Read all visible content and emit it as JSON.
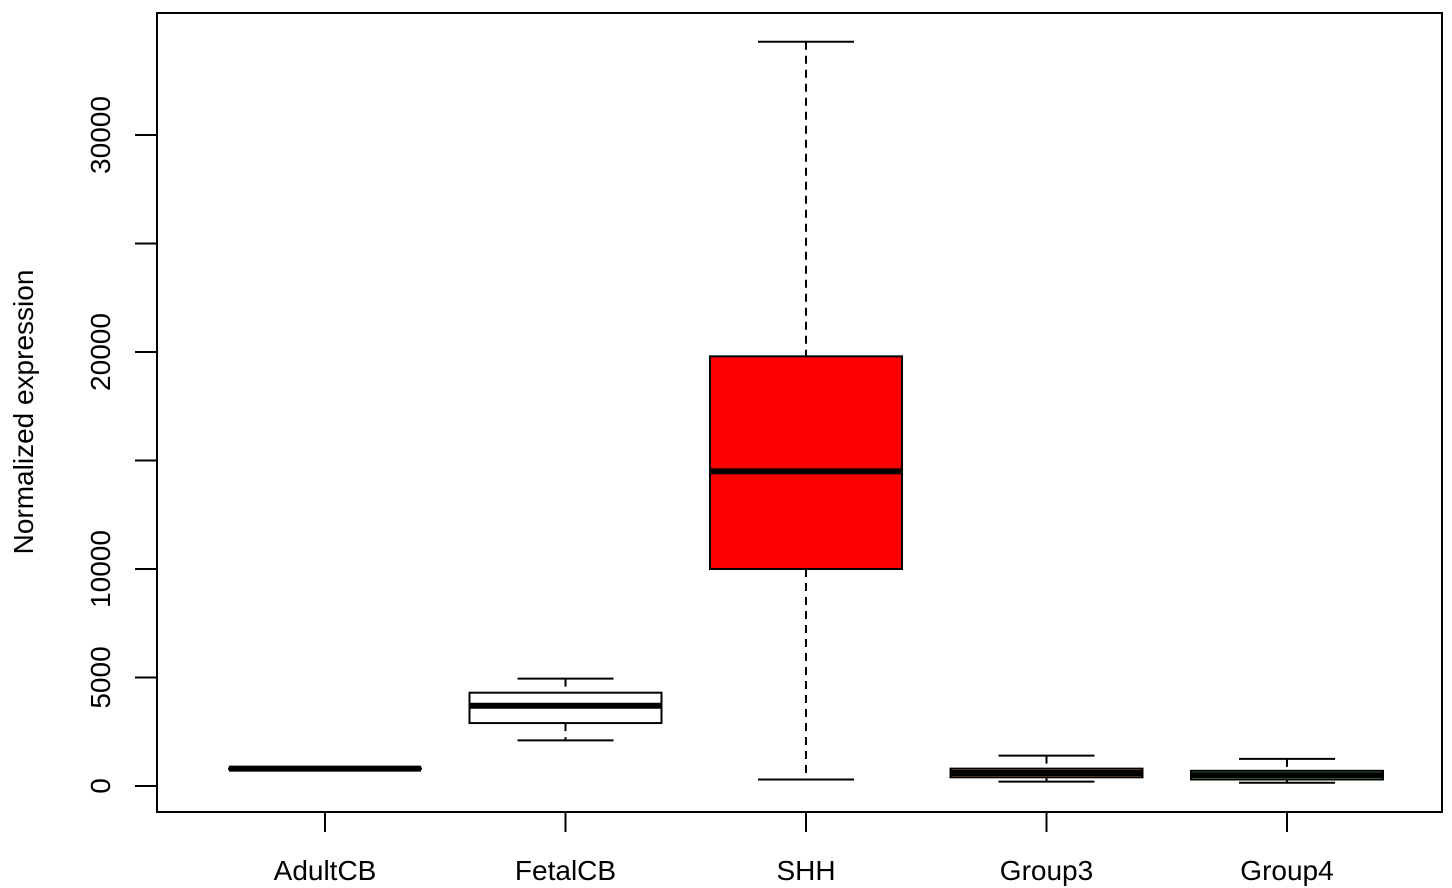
{
  "chart_data": {
    "type": "boxplot",
    "title": "",
    "xlabel": "",
    "ylabel": "Normalized expression",
    "ylim": [
      -1200,
      35500
    ],
    "yticks": [
      0,
      5000,
      10000,
      20000,
      30000
    ],
    "yticks_minor": [
      15000,
      25000
    ],
    "grid": false,
    "legend": "none",
    "categories": [
      "AdultCB",
      "FetalCB",
      "SHH",
      "Group3",
      "Group4"
    ],
    "boxes": [
      {
        "name": "AdultCB",
        "min": 790,
        "q1": 790,
        "median": 800,
        "q3": 810,
        "max": 810,
        "color": "#ffffff"
      },
      {
        "name": "FetalCB",
        "min": 2100,
        "q1": 2900,
        "median": 3700,
        "q3": 4300,
        "max": 4950,
        "color": "#ffffff"
      },
      {
        "name": "SHH",
        "min": 300,
        "q1": 10000,
        "median": 14500,
        "q3": 19800,
        "max": 34300,
        "color": "#ff0000"
      },
      {
        "name": "Group3",
        "min": 200,
        "q1": 400,
        "median": 600,
        "q3": 800,
        "max": 1400,
        "color": "#f4a460"
      },
      {
        "name": "Group4",
        "min": 150,
        "q1": 300,
        "median": 500,
        "q3": 700,
        "max": 1250,
        "color": "#90ee90"
      }
    ]
  }
}
